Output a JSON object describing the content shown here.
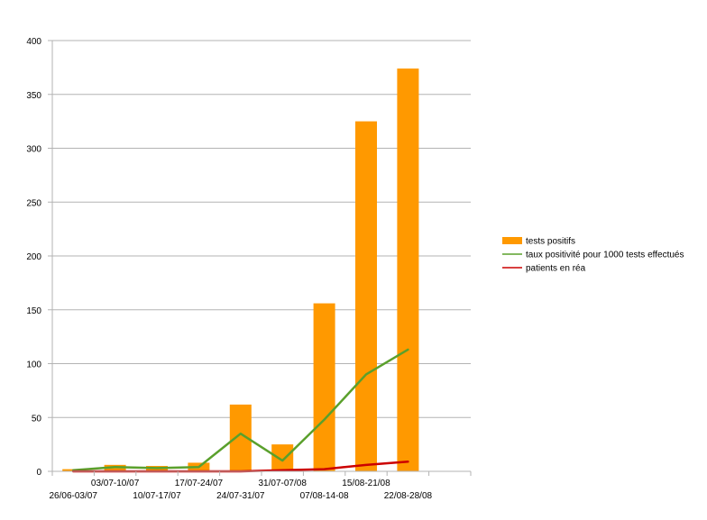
{
  "chart_data": {
    "type": "bar",
    "title": "",
    "xlabel": "",
    "ylabel": "",
    "ylim": [
      0,
      400
    ],
    "yticks": [
      0,
      50,
      100,
      150,
      200,
      250,
      300,
      350,
      400
    ],
    "grid": true,
    "legend_position": "right",
    "categories": [
      "26/06-03/07",
      "03/07-10/07",
      "10/07-17/07",
      "17/07-24/07",
      "24/07-31/07",
      "31/07-07/08",
      "07/08-14-08",
      "15/08-21/08",
      "22/08-28/08"
    ],
    "series": [
      {
        "name": "tests positifs",
        "kind": "bar",
        "color": "#ff9900",
        "values": [
          2,
          6,
          5,
          8,
          62,
          25,
          156,
          325,
          374
        ]
      },
      {
        "name": "taux positivité pour 1000 tests effectués",
        "kind": "line",
        "color": "#5aa02c",
        "values": [
          1,
          4,
          3,
          4,
          35,
          10,
          48,
          90,
          113
        ]
      },
      {
        "name": "patients en réa",
        "kind": "line",
        "color": "#cc0000",
        "values": [
          0,
          0,
          0,
          0,
          0,
          1,
          2,
          6,
          9
        ]
      }
    ]
  }
}
